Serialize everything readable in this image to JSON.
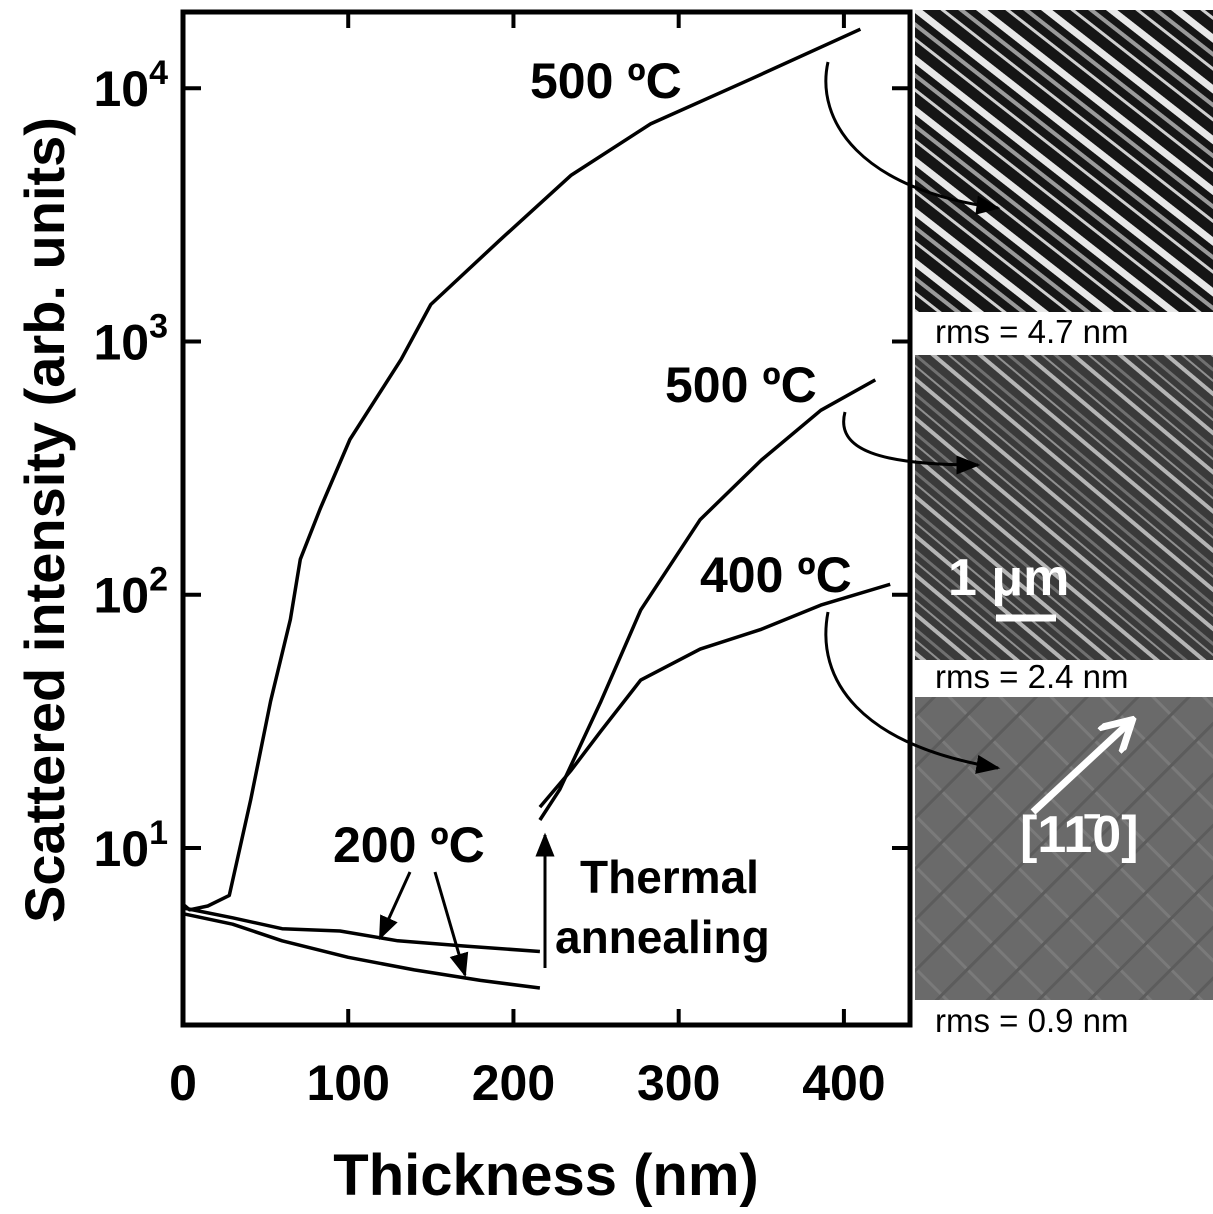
{
  "chart_data": {
    "type": "line",
    "xlabel": "Thickness (nm)",
    "ylabel": "Scattered intensity (arb. units)",
    "xlim": [
      0,
      440
    ],
    "ylim": [
      2,
      20000
    ],
    "log_y": true,
    "xticks": [
      0,
      100,
      200,
      300,
      400
    ],
    "yticks": [
      {
        "value": 10,
        "label": "10",
        "exponent": "1"
      },
      {
        "value": 100,
        "label": "10",
        "exponent": "2"
      },
      {
        "value": 1000,
        "label": "10",
        "exponent": "3"
      },
      {
        "value": 10000,
        "label": "10",
        "exponent": "4"
      }
    ],
    "series": [
      {
        "name": "500 ºC",
        "color": "#000000",
        "x": [
          0,
          4,
          15,
          28,
          41,
          53,
          65,
          71,
          83,
          101,
          132,
          150,
          192,
          235,
          283,
          344,
          410
        ],
        "values": [
          6,
          5.7,
          5.9,
          6.5,
          15.5,
          38,
          80,
          138,
          218,
          410,
          850,
          1400,
          2520,
          4540,
          7230,
          10900,
          17100
        ]
      },
      {
        "name": "200 ºC",
        "color": "#000000",
        "x": [
          0,
          30,
          60,
          95,
          130,
          170,
          216
        ],
        "values": [
          5.8,
          5.3,
          4.8,
          4.7,
          4.3,
          4.1,
          3.9
        ]
      },
      {
        "color": "#000000",
        "x": [
          0,
          30,
          60,
          100,
          140,
          180,
          216
        ],
        "values": [
          5.5,
          5,
          4.3,
          3.7,
          3.3,
          3.0,
          2.8
        ]
      },
      {
        "name": "500 ºC",
        "color": "#000000",
        "x": [
          216,
          228,
          253,
          277,
          313,
          350,
          386,
          419
        ],
        "values": [
          12.9,
          17,
          38,
          87,
          198,
          340,
          535,
          705
        ]
      },
      {
        "name": "400 ºC",
        "color": "#000000",
        "x": [
          216,
          235,
          253,
          277,
          313,
          350,
          386,
          428
        ],
        "values": [
          14.5,
          20.3,
          29,
          46,
          61,
          73,
          91,
          110
        ]
      }
    ],
    "annotations": [
      "Thermal",
      "annealing"
    ]
  },
  "afm_images": {
    "captions": [
      "rms = 4.7 nm",
      "rms = 2.4 nm",
      "rms = 0.9 nm"
    ],
    "scale_bar": "1 μm",
    "direction": "[11̄0]"
  }
}
